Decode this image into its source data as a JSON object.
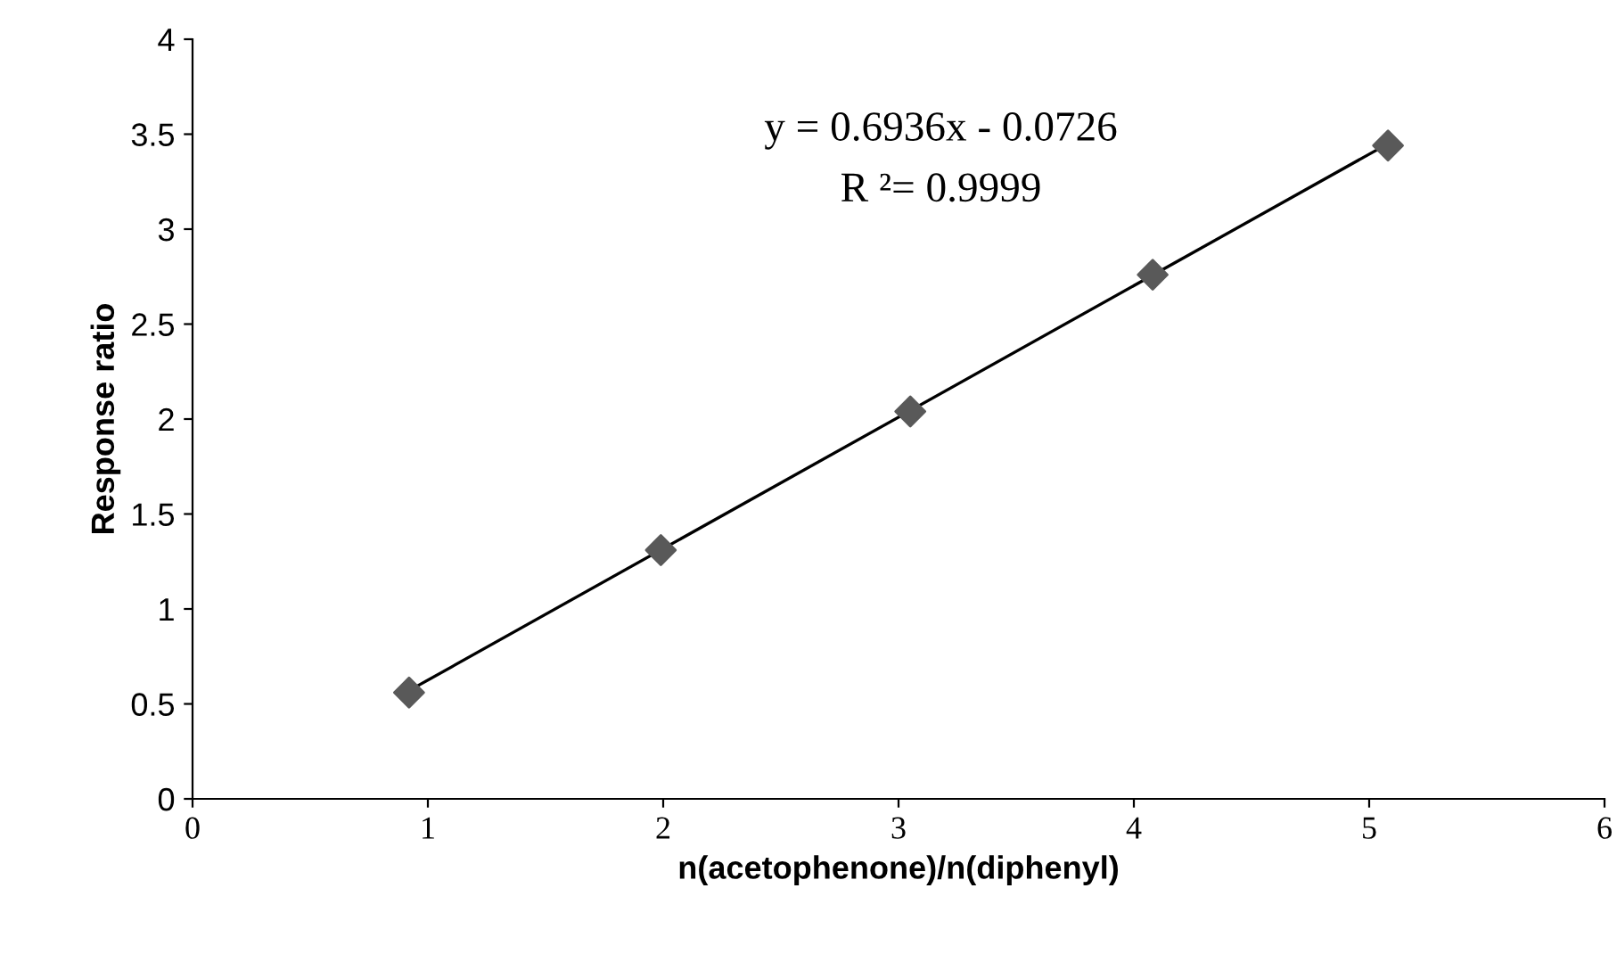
{
  "chart_data": {
    "type": "scatter",
    "xlabel": "n(acetophenone)/n(diphenyl)",
    "ylabel": "Response ratio",
    "xlim": [
      0,
      6
    ],
    "xticks": [
      0,
      1,
      2,
      3,
      4,
      5,
      6
    ],
    "ylim": [
      0,
      4
    ],
    "yticks": [
      0,
      0.5,
      1,
      1.5,
      2,
      2.5,
      3,
      3.5,
      4
    ],
    "grid": false,
    "series": [
      {
        "marker": "diamond",
        "color": "#595959",
        "x": [
          0.92,
          1.99,
          3.05,
          4.08,
          5.08
        ],
        "values": [
          0.56,
          1.31,
          2.04,
          2.76,
          3.44
        ]
      },
      {
        "type": "line",
        "marker": "none",
        "color": "#000000",
        "line_style": "solid",
        "x": [
          0.92,
          5.08
        ],
        "values": [
          0.57,
          3.45
        ]
      }
    ],
    "annotations": [
      "y = 0.6936x - 0.0726",
      "R ²= 0.9999"
    ]
  }
}
